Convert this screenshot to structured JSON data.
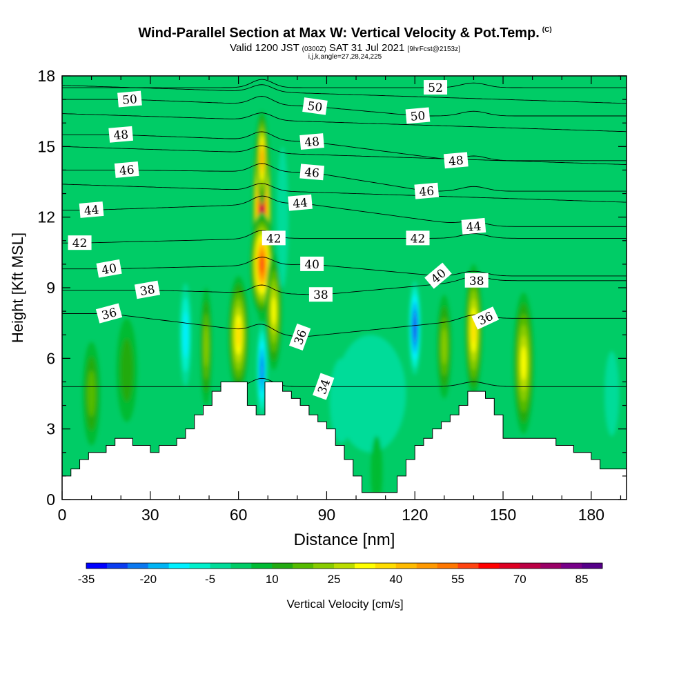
{
  "header": {
    "title": "Wind-Parallel Section at Max W: Vertical Velocity & Pot.Temp.",
    "copyright": "(C)",
    "valid_prefix": "Valid 1200 JST",
    "valid_utc": "(0300Z)",
    "valid_date": "SAT 31 Jul 2021",
    "forecast": "[9hrFcst@2153z]",
    "subtitle": "i,j,k,angle=27,28,24,225"
  },
  "chart_data": {
    "type": "heatmap",
    "title": "Wind-Parallel Section at Max W: Vertical Velocity & Pot.Temp.",
    "xlabel": "Distance [nm]",
    "ylabel": "Height [Kft MSL]",
    "xlim": [
      0,
      192
    ],
    "ylim": [
      0,
      18
    ],
    "x_ticks": [
      0,
      30,
      60,
      90,
      120,
      150,
      180
    ],
    "y_ticks": [
      0,
      3,
      6,
      9,
      12,
      15,
      18
    ],
    "colorbar": {
      "label": "Vertical Velocity [cm/s]",
      "tick_labels": [
        "-35",
        "-20",
        "-5",
        "10",
        "25",
        "40",
        "55",
        "70",
        "85"
      ],
      "tick_values": [
        -35,
        -20,
        -5,
        10,
        25,
        40,
        55,
        70,
        85
      ],
      "min": -35,
      "max": 90,
      "step": 5,
      "colors": [
        "#0000ff",
        "#0a3cf0",
        "#0a78f0",
        "#00b4f5",
        "#00f0ff",
        "#00f0cc",
        "#00dc99",
        "#00cc66",
        "#00bb33",
        "#22aa11",
        "#55bb00",
        "#88cc00",
        "#bbdd00",
        "#ffff00",
        "#ffdd00",
        "#ffbb00",
        "#ff9900",
        "#ff7700",
        "#ff4411",
        "#ff0000",
        "#dd0022",
        "#bb0044",
        "#990066",
        "#770088",
        "#550088"
      ]
    },
    "background_value": 0,
    "velocity_features": [
      {
        "x": 68,
        "y": 12.0,
        "rx": 3.2,
        "ry": 4.5,
        "value": 75
      },
      {
        "x": 68,
        "y": 14.5,
        "rx": 1.8,
        "ry": 2.0,
        "value": 45
      },
      {
        "x": 68,
        "y": 10.0,
        "rx": 4.0,
        "ry": 2.2,
        "value": 55
      },
      {
        "x": 60,
        "y": 7.0,
        "rx": 3.5,
        "ry": 2.5,
        "value": 35
      },
      {
        "x": 72,
        "y": 8.0,
        "rx": 2.8,
        "ry": 2.5,
        "value": 30
      },
      {
        "x": 68,
        "y": 5.5,
        "rx": 1.8,
        "ry": 2.0,
        "value": -25
      },
      {
        "x": 49,
        "y": 6.5,
        "rx": 2.0,
        "ry": 2.5,
        "value": 20
      },
      {
        "x": 42,
        "y": 7.0,
        "rx": 2.0,
        "ry": 2.2,
        "value": -15
      },
      {
        "x": 10,
        "y": 4.5,
        "rx": 3.0,
        "ry": 2.2,
        "value": 15
      },
      {
        "x": 22,
        "y": 5.5,
        "rx": 3.5,
        "ry": 2.2,
        "value": 10
      },
      {
        "x": 120,
        "y": 7.3,
        "rx": 2.0,
        "ry": 2.0,
        "value": -30
      },
      {
        "x": 140,
        "y": 7.2,
        "rx": 3.0,
        "ry": 2.8,
        "value": 35
      },
      {
        "x": 130,
        "y": 6.5,
        "rx": 2.5,
        "ry": 2.2,
        "value": 20
      },
      {
        "x": 157,
        "y": 5.8,
        "rx": 3.5,
        "ry": 3.0,
        "value": 30
      },
      {
        "x": 105,
        "y": 4.5,
        "rx": 12.0,
        "ry": 2.5,
        "value": -5
      },
      {
        "x": 95,
        "y": 4.2,
        "rx": 4.0,
        "ry": 1.8,
        "value": -8
      },
      {
        "x": 75,
        "y": 12.0,
        "rx": 2.0,
        "ry": 3.0,
        "value": -5
      },
      {
        "x": 127,
        "y": 14.0,
        "rx": 2.0,
        "ry": 3.0,
        "value": -3
      },
      {
        "x": 187,
        "y": 4.5,
        "rx": 2.5,
        "ry": 1.8,
        "value": -5
      },
      {
        "x": 107,
        "y": 1.2,
        "rx": 2.0,
        "ry": 1.5,
        "value": 5
      }
    ],
    "terrain_x": [
      0,
      3,
      6,
      9,
      12,
      15,
      18,
      21,
      24,
      27,
      30,
      33,
      36,
      39,
      42,
      45,
      48,
      51,
      54,
      57,
      60,
      63,
      66,
      69,
      72,
      75,
      78,
      81,
      84,
      87,
      90,
      93,
      96,
      99,
      102,
      105,
      108,
      111,
      114,
      117,
      120,
      123,
      126,
      129,
      132,
      135,
      138,
      141,
      144,
      147,
      150,
      153,
      156,
      159,
      162,
      165,
      168,
      171,
      174,
      177,
      180,
      183,
      186,
      189,
      192
    ],
    "terrain_height": [
      1.0,
      1.3,
      1.7,
      2.0,
      2.0,
      2.3,
      2.6,
      2.6,
      2.3,
      2.3,
      2.0,
      2.3,
      2.3,
      2.6,
      3.0,
      3.6,
      4.0,
      4.6,
      5.0,
      5.0,
      5.0,
      4.0,
      3.6,
      5.0,
      5.0,
      4.6,
      4.3,
      4.0,
      3.6,
      3.3,
      3.0,
      2.3,
      1.7,
      1.0,
      0.3,
      0.3,
      0.3,
      0.3,
      1.0,
      1.7,
      2.3,
      2.6,
      3.0,
      3.3,
      3.6,
      4.0,
      4.6,
      4.6,
      4.3,
      3.6,
      2.6,
      2.6,
      2.6,
      2.6,
      2.6,
      2.6,
      2.3,
      2.3,
      2.0,
      2.0,
      1.7,
      1.3,
      1.3,
      1.3,
      1.3
    ],
    "potential_temperature_contours": [
      {
        "label": "34",
        "label_x": 89,
        "label_y": 4.8,
        "label_angle": -70
      },
      {
        "label": "36",
        "label_x": 16,
        "label_y": 7.9,
        "label_angle": -15
      },
      {
        "label": "36",
        "label_x": 81,
        "label_y": 6.9,
        "label_angle": -70
      },
      {
        "label": "36",
        "label_x": 144,
        "label_y": 7.7,
        "label_angle": -25
      },
      {
        "label": "38",
        "label_x": 29,
        "label_y": 8.9,
        "label_angle": -10
      },
      {
        "label": "38",
        "label_x": 88,
        "label_y": 8.7,
        "label_angle": 0
      },
      {
        "label": "38",
        "label_x": 141,
        "label_y": 9.3,
        "label_angle": 0
      },
      {
        "label": "40",
        "label_x": 16,
        "label_y": 9.8,
        "label_angle": -10
      },
      {
        "label": "40",
        "label_x": 85,
        "label_y": 10.0,
        "label_angle": 0
      },
      {
        "label": "40",
        "label_x": 128,
        "label_y": 9.5,
        "label_angle": -40
      },
      {
        "label": "42",
        "label_x": 6,
        "label_y": 10.9,
        "label_angle": 0
      },
      {
        "label": "42",
        "label_x": 72,
        "label_y": 11.1,
        "label_angle": 0
      },
      {
        "label": "42",
        "label_x": 121,
        "label_y": 11.1,
        "label_angle": 0
      },
      {
        "label": "44",
        "label_x": 10,
        "label_y": 12.3,
        "label_angle": -5
      },
      {
        "label": "44",
        "label_x": 81,
        "label_y": 12.6,
        "label_angle": -5
      },
      {
        "label": "44",
        "label_x": 140,
        "label_y": 11.6,
        "label_angle": -5
      },
      {
        "label": "46",
        "label_x": 22,
        "label_y": 14.0,
        "label_angle": -5
      },
      {
        "label": "46",
        "label_x": 85,
        "label_y": 13.9,
        "label_angle": 5
      },
      {
        "label": "46",
        "label_x": 124,
        "label_y": 13.1,
        "label_angle": -5
      },
      {
        "label": "48",
        "label_x": 20,
        "label_y": 15.5,
        "label_angle": -5
      },
      {
        "label": "48",
        "label_x": 85,
        "label_y": 15.2,
        "label_angle": -5
      },
      {
        "label": "48",
        "label_x": 134,
        "label_y": 14.4,
        "label_angle": -5
      },
      {
        "label": "50",
        "label_x": 23,
        "label_y": 17.0,
        "label_angle": -5
      },
      {
        "label": "50",
        "label_x": 86,
        "label_y": 16.7,
        "label_angle": 8
      },
      {
        "label": "50",
        "label_x": 121,
        "label_y": 16.3,
        "label_angle": -5
      },
      {
        "label": "52",
        "label_x": 127,
        "label_y": 17.5,
        "label_angle": 0
      }
    ]
  }
}
